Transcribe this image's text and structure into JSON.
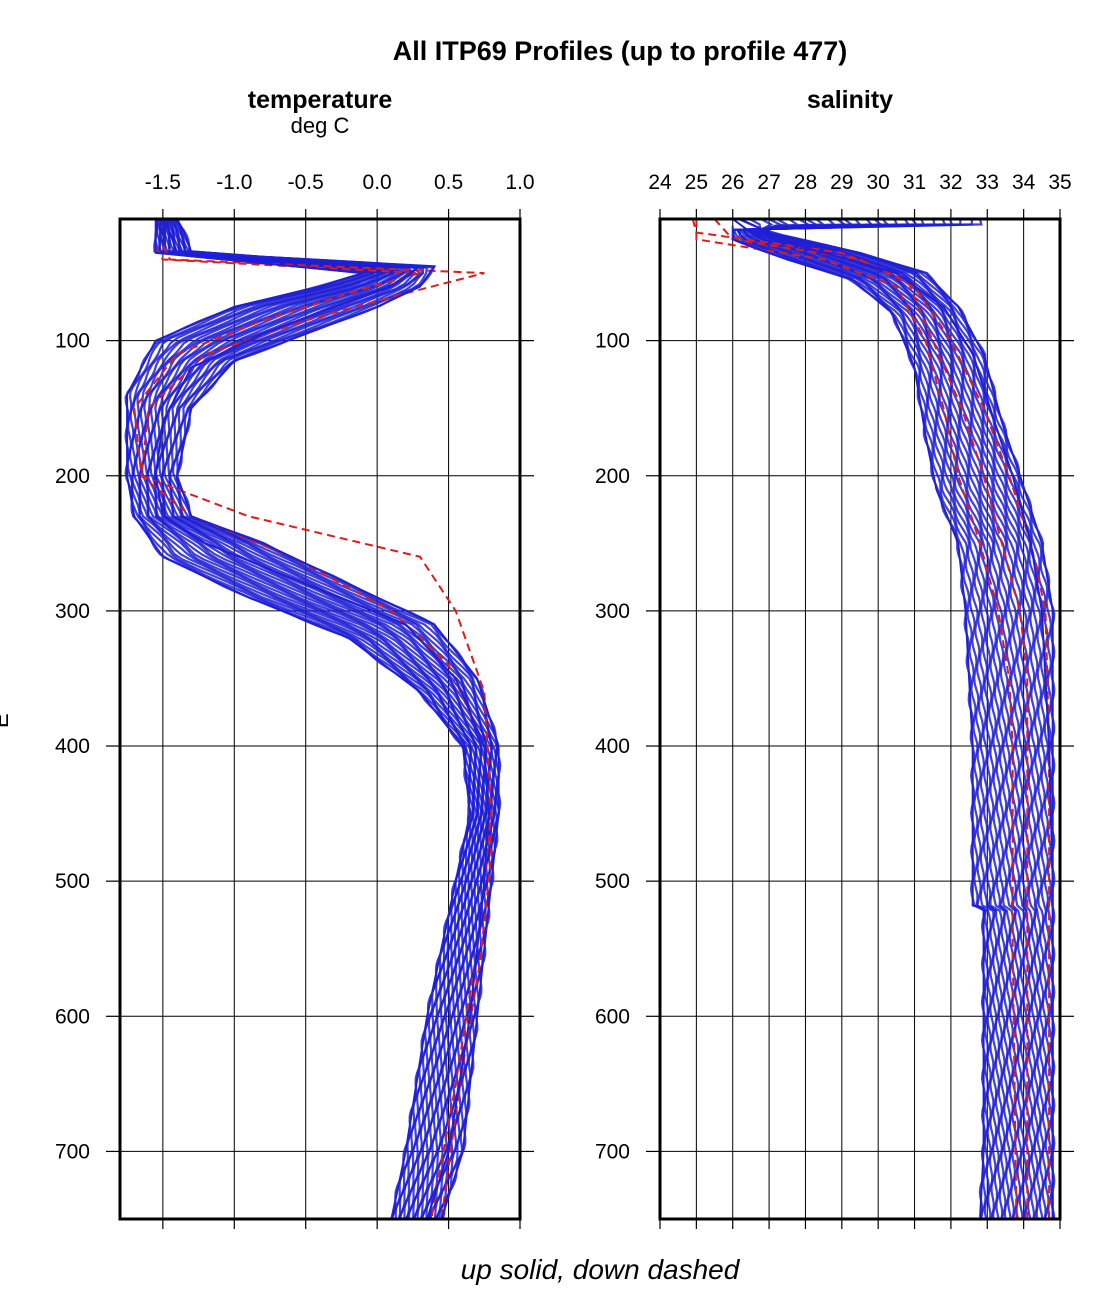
{
  "figure": {
    "title": "All ITP69 Profiles (up to profile 477)",
    "caption": "up solid, down dashed",
    "ylabel_fragment": "E"
  },
  "colors": {
    "up": "#1f1fd6",
    "down": "#e01b1b"
  },
  "chart_data": [
    {
      "type": "line",
      "title": "temperature",
      "units": "deg C",
      "xlim": [
        -1.8,
        1.0
      ],
      "ylim": [
        750,
        10
      ],
      "y_reversed": true,
      "xticks": [
        -1.5,
        -1.0,
        -0.5,
        0.0,
        0.5,
        1.0
      ],
      "xtick_labels": [
        "-1.5",
        "-1.0",
        "-0.5",
        "0.0",
        "0.5",
        "1.0"
      ],
      "yticks": [
        100,
        200,
        300,
        400,
        500,
        600,
        700
      ],
      "ytick_labels": [
        "100",
        "200",
        "300",
        "400",
        "500",
        "600",
        "700"
      ],
      "grid": true,
      "series": [
        {
          "style": "up (solid)",
          "x": [
            -1.5,
            -1.45,
            -1.4,
            0.3,
            0.1,
            -0.3,
            -0.8,
            -1.3,
            -1.5,
            -1.55,
            -1.5,
            -1.2,
            -0.5,
            0.2,
            0.55,
            0.75,
            0.78,
            0.75,
            0.65,
            0.5,
            0.35
          ],
          "y": [
            10,
            20,
            35,
            45,
            60,
            75,
            95,
            120,
            160,
            200,
            230,
            250,
            280,
            310,
            350,
            400,
            450,
            500,
            600,
            700,
            750
          ]
        },
        {
          "style": "up envelope low",
          "x": [
            -1.55,
            -1.55,
            -1.55,
            -0.1,
            -0.4,
            -1.0,
            -1.55,
            -1.75,
            -1.75,
            -1.7,
            -1.5,
            -0.9,
            -0.2,
            0.3,
            0.6,
            0.65,
            0.55,
            0.35,
            0.2,
            0.1
          ],
          "y": [
            10,
            20,
            35,
            50,
            60,
            75,
            100,
            140,
            200,
            230,
            260,
            290,
            320,
            360,
            400,
            450,
            500,
            600,
            700,
            750
          ]
        },
        {
          "style": "up envelope high",
          "x": [
            -1.4,
            -1.35,
            -1.3,
            0.4,
            0.3,
            0.0,
            -0.5,
            -1.0,
            -1.3,
            -1.4,
            -1.3,
            -0.8,
            -0.2,
            0.4,
            0.7,
            0.85,
            0.85,
            0.75,
            0.6,
            0.45
          ],
          "y": [
            10,
            20,
            35,
            45,
            60,
            75,
            95,
            115,
            150,
            200,
            230,
            250,
            280,
            310,
            350,
            400,
            450,
            550,
            700,
            750
          ]
        },
        {
          "style": "down (dashed)",
          "x": [
            -1.5,
            -1.45,
            0.75,
            0.2,
            -0.5,
            -1.2,
            -1.6,
            -1.65,
            -1.4,
            -0.9,
            0.3,
            0.55,
            0.75,
            0.8,
            0.7,
            0.55,
            0.38
          ],
          "y": [
            30,
            40,
            50,
            65,
            85,
            110,
            150,
            200,
            210,
            230,
            260,
            300,
            360,
            450,
            550,
            650,
            750
          ]
        },
        {
          "style": "down (dashed) 2",
          "x": [
            -1.55,
            -1.5,
            0.3,
            -0.2,
            -0.8,
            -1.4,
            -1.7,
            -1.65,
            -1.3,
            -0.6,
            0.1,
            0.5,
            0.75,
            0.8,
            0.72,
            0.58,
            0.45
          ],
          "y": [
            30,
            40,
            50,
            65,
            85,
            110,
            150,
            200,
            230,
            260,
            300,
            340,
            400,
            480,
            560,
            650,
            750
          ]
        }
      ]
    },
    {
      "type": "line",
      "title": "salinity",
      "units": "",
      "xlim": [
        24,
        35
      ],
      "ylim": [
        750,
        10
      ],
      "y_reversed": true,
      "xticks": [
        24,
        25,
        26,
        27,
        28,
        29,
        30,
        31,
        32,
        33,
        34,
        35
      ],
      "xtick_labels": [
        "24",
        "25",
        "26",
        "27",
        "28",
        "29",
        "30",
        "31",
        "32",
        "33",
        "34",
        "35"
      ],
      "yticks": [
        100,
        200,
        300,
        400,
        500,
        600,
        700
      ],
      "ytick_labels": [
        "100",
        "200",
        "300",
        "400",
        "500",
        "600",
        "700"
      ],
      "grid": true,
      "series": [
        {
          "style": "up (solid)",
          "x": [
            26.0,
            26.5,
            28.5,
            30.5,
            31.8,
            32.6,
            33.2,
            33.7,
            34.2,
            34.5,
            34.7,
            34.8,
            34.8
          ],
          "y": [
            10,
            20,
            35,
            50,
            75,
            110,
            160,
            200,
            250,
            300,
            400,
            500,
            750
          ]
        },
        {
          "style": "up envelope low",
          "x": [
            26.0,
            26.0,
            27.5,
            29.3,
            30.4,
            31.0,
            31.3,
            31.6,
            32.2,
            32.4,
            32.5,
            32.6,
            32.6,
            32.9,
            32.9,
            32.9,
            32.8
          ],
          "y": [
            15,
            25,
            40,
            55,
            80,
            120,
            170,
            210,
            250,
            300,
            350,
            400,
            518,
            520,
            600,
            700,
            750
          ]
        },
        {
          "style": "up envelope high",
          "x": [
            26.2,
            27.0,
            29.5,
            31.3,
            32.2,
            32.9,
            33.4,
            33.9,
            34.5,
            34.8,
            34.8,
            34.8
          ],
          "y": [
            10,
            20,
            35,
            50,
            75,
            110,
            160,
            200,
            250,
            300,
            400,
            750
          ]
        },
        {
          "style": "down (dashed)",
          "x": [
            25.0,
            25.0,
            28.5,
            30.5,
            31.3,
            31.8,
            32.2,
            32.8,
            33.3,
            33.6,
            33.7,
            33.7,
            33.8
          ],
          "y": [
            10,
            25,
            40,
            60,
            100,
            150,
            200,
            250,
            300,
            350,
            400,
            550,
            750
          ]
        },
        {
          "style": "down (dashed) 2",
          "x": [
            24.9,
            25.0,
            29.0,
            30.8,
            31.5,
            32.3,
            32.9,
            33.4,
            33.9,
            34.1,
            34.1,
            34.1
          ],
          "y": [
            10,
            20,
            35,
            55,
            100,
            150,
            200,
            250,
            300,
            350,
            450,
            750
          ]
        },
        {
          "style": "down (dashed) 3",
          "x": [
            25.5,
            26.0,
            29.5,
            31.0,
            32.0,
            32.9,
            33.6,
            34.2,
            34.6,
            34.7,
            34.7
          ],
          "y": [
            10,
            25,
            40,
            60,
            100,
            150,
            200,
            250,
            300,
            400,
            750
          ]
        }
      ]
    }
  ]
}
